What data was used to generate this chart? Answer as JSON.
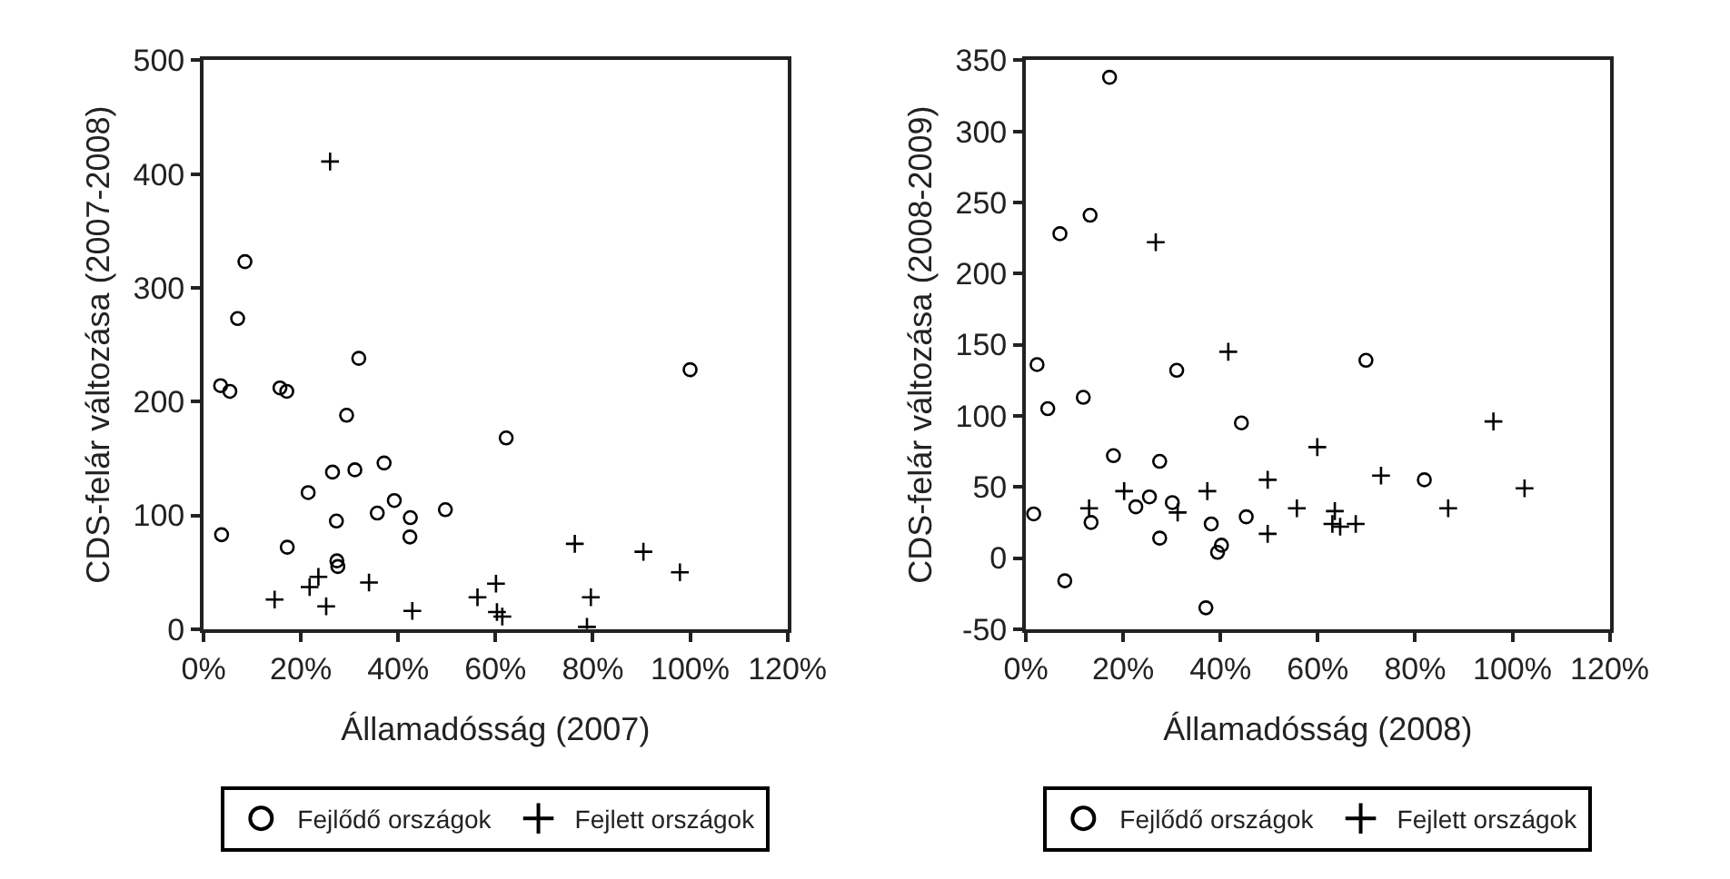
{
  "chart_data": [
    {
      "type": "scatter",
      "xlabel": "Államadósság (2007)",
      "ylabel": "CDS-felár változása (2007-2008)",
      "xlim": [
        0,
        120
      ],
      "ylim": [
        0,
        500
      ],
      "xticks": [
        {
          "value": 0,
          "label": "0%"
        },
        {
          "value": 20,
          "label": "20%"
        },
        {
          "value": 40,
          "label": "40%"
        },
        {
          "value": 60,
          "label": "60%"
        },
        {
          "value": 80,
          "label": "80%"
        },
        {
          "value": 100,
          "label": "100%"
        },
        {
          "value": 120,
          "label": "120%"
        }
      ],
      "yticks": [
        0,
        100,
        200,
        300,
        400,
        500
      ],
      "legend": "bottom",
      "series": [
        {
          "name": "Fejlődő országok",
          "color": "#000000",
          "marker": "circle",
          "x": [
            8.5,
            7.0,
            31.9,
            3.5,
            5.4,
            15.7,
            17.1,
            100,
            29.4,
            62.2,
            26.5,
            31.1,
            37.1,
            21.5,
            39.2,
            35.7,
            42.5,
            49.7,
            27.3,
            42.4,
            3.7,
            17.2,
            27.4,
            27.6
          ],
          "values": [
            323,
            273,
            238,
            214,
            209,
            212,
            209,
            228,
            188,
            168,
            138,
            140,
            146,
            120,
            113,
            102,
            98,
            105,
            95,
            81,
            83,
            72,
            60,
            55
          ]
        },
        {
          "name": "Fejlett országok",
          "color": "#000000",
          "marker": "cross",
          "x": [
            26.0,
            76.3,
            90.4,
            97.9,
            23.6,
            21.8,
            14.6,
            25.2,
            34.0,
            42.9,
            56.3,
            60.1,
            60.3,
            61.4,
            79.6,
            78.8
          ],
          "values": [
            411,
            75,
            68,
            50,
            46,
            37,
            26,
            20,
            41,
            16,
            28,
            40,
            15,
            11,
            28,
            2
          ]
        }
      ]
    },
    {
      "type": "scatter",
      "xlabel": "Államadósság (2008)",
      "ylabel": "CDS-felár változása (2008-2009)",
      "xlim": [
        0,
        120
      ],
      "ylim": [
        -50,
        350
      ],
      "xticks": [
        {
          "value": 0,
          "label": "0%"
        },
        {
          "value": 20,
          "label": "20%"
        },
        {
          "value": 40,
          "label": "40%"
        },
        {
          "value": 60,
          "label": "60%"
        },
        {
          "value": 80,
          "label": "80%"
        },
        {
          "value": 100,
          "label": "100%"
        },
        {
          "value": 120,
          "label": "120%"
        }
      ],
      "yticks": [
        -50,
        0,
        50,
        100,
        150,
        200,
        250,
        300,
        350
      ],
      "legend": "bottom",
      "series": [
        {
          "name": "Fejlődő országok",
          "color": "#000000",
          "marker": "circle",
          "x": [
            17.2,
            13.2,
            7.0,
            2.3,
            31.0,
            69.9,
            11.8,
            4.5,
            44.3,
            18.0,
            27.5,
            81.9,
            1.6,
            25.4,
            22.6,
            30.1,
            45.3,
            13.4,
            38.1,
            27.5,
            40.2,
            39.4,
            8.0,
            37.0
          ],
          "values": [
            338,
            241,
            228,
            136,
            132,
            139,
            113,
            105,
            95,
            72,
            68,
            55,
            31,
            43,
            36,
            39,
            29,
            25,
            24,
            14,
            9,
            4,
            -16,
            -35
          ]
        },
        {
          "name": "Fejlett országok",
          "color": "#000000",
          "marker": "cross",
          "x": [
            26.7,
            41.6,
            59.9,
            96.1,
            49.7,
            73.0,
            102.5,
            20.2,
            37.3,
            13.0,
            31.2,
            55.7,
            63.5,
            86.8,
            49.7,
            63.0,
            64.6,
            67.8
          ],
          "values": [
            222,
            145,
            78,
            96,
            55,
            58,
            49,
            47,
            47,
            35,
            32,
            35,
            33,
            35,
            17,
            24,
            22,
            24
          ]
        }
      ]
    }
  ]
}
